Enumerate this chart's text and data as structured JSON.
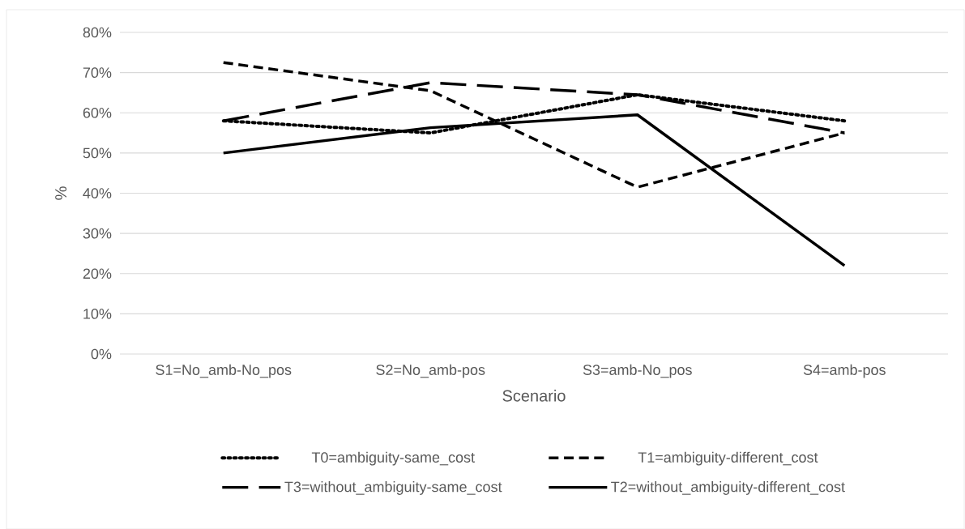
{
  "chart_data": {
    "type": "line",
    "xlabel": "Scenario",
    "ylabel": "%",
    "categories": [
      "S1=No_amb-No_pos",
      "S2=No_amb-pos",
      "S3=amb-No_pos",
      "S4=amb-pos"
    ],
    "series": [
      {
        "name": "T0=ambiguity-same_cost",
        "color": "#000000",
        "line_style": "dotted",
        "values": [
          58,
          55,
          64.5,
          58
        ]
      },
      {
        "name": "T1=ambiguity-different_cost",
        "color": "#000000",
        "line_style": "dashed",
        "values": [
          72.5,
          65.5,
          41.5,
          55
        ]
      },
      {
        "name": "T3=without_ambiguity-same_cost",
        "color": "#000000",
        "line_style": "long dashed",
        "values": [
          58,
          67.5,
          64.5,
          55
        ]
      },
      {
        "name": "T2=without_ambiguity-different_cost",
        "color": "#000000",
        "line_style": "solid",
        "values": [
          50,
          56.3,
          59.5,
          22
        ]
      }
    ],
    "ylim": [
      0,
      80
    ],
    "yticks": [
      {
        "value": 0,
        "label": "0%"
      },
      {
        "value": 10,
        "label": "10%"
      },
      {
        "value": 20,
        "label": "20%"
      },
      {
        "value": 30,
        "label": "30%"
      },
      {
        "value": 40,
        "label": "40%"
      },
      {
        "value": 50,
        "label": "50%"
      },
      {
        "value": 60,
        "label": "60%"
      },
      {
        "value": 70,
        "label": "70%"
      },
      {
        "value": 80,
        "label": "80%"
      }
    ],
    "grid": "y",
    "legend": "bottom"
  }
}
